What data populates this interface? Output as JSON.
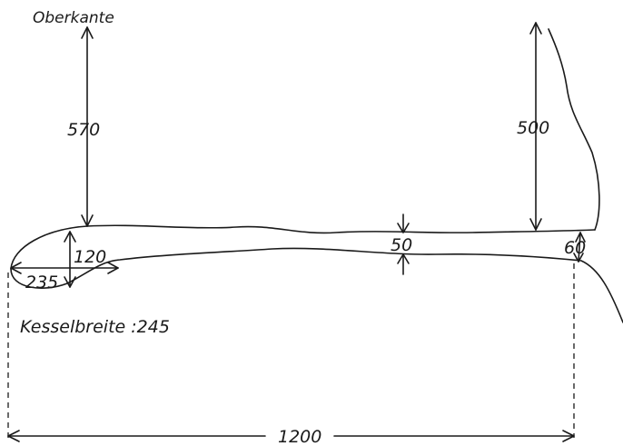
{
  "labels": {
    "top_edge": "Oberkante",
    "depth_left": "570",
    "depth_right": "500",
    "passage_height": "50",
    "end_height": "60",
    "chamber_height": "120",
    "chamber_length": "235",
    "chamber_width": "Kesselbreite :245",
    "total_length": "1200"
  }
}
